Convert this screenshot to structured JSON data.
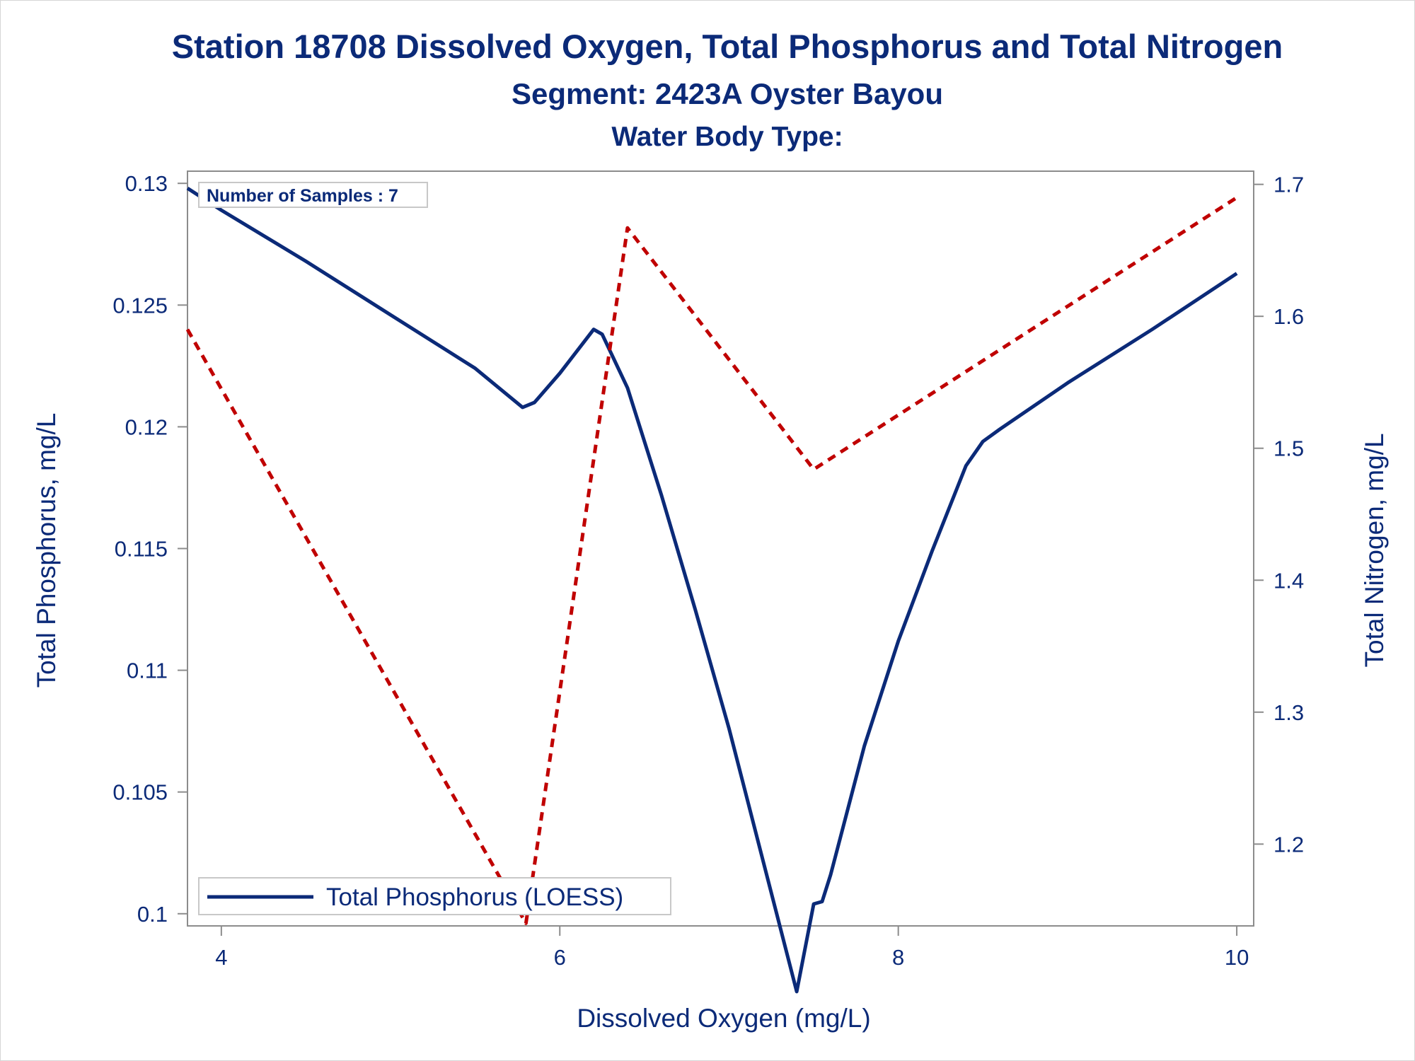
{
  "chart_data": {
    "type": "line",
    "title": "Station 18708  Dissolved Oxygen, Total Phosphorus and Total Nitrogen",
    "subtitle": "Segment: 2423A  Oyster Bayou",
    "subtitle2": "Water Body Type:",
    "xlabel": "Dissolved Oxygen (mg/L)",
    "ylabel": "Total Phosphorus, mg/L",
    "y2label": "Total Nitrogen, mg/L",
    "xlim": [
      3.8,
      10.1
    ],
    "ylim": [
      0.0995,
      0.1305
    ],
    "y2lim": [
      1.138,
      1.71
    ],
    "x_ticks": [
      "4",
      "6",
      "8",
      "10"
    ],
    "y_ticks": [
      "0.1",
      "0.105",
      "0.11",
      "0.115",
      "0.12",
      "0.125",
      "0.13"
    ],
    "y2_ticks": [
      "1.2",
      "1.3",
      "1.4",
      "1.5",
      "1.6",
      "1.7"
    ],
    "annotation": "Number of Samples : 7",
    "legend_position": "bottom-left",
    "colors": {
      "phosphorus": "#0b2a78",
      "nitrogen": "#c00000",
      "text": "#0b2a78",
      "axis": "#8c8c8c"
    },
    "series": [
      {
        "name": "Total Phosphorus (LOESS)",
        "axis": "left",
        "style": "solid",
        "x": [
          3.8,
          4.0,
          4.5,
          5.0,
          5.5,
          5.78,
          5.85,
          6.0,
          6.2,
          6.25,
          6.4,
          6.6,
          6.8,
          7.0,
          7.2,
          7.4,
          7.5,
          7.55,
          7.6,
          7.8,
          8.0,
          8.2,
          8.4,
          8.5,
          8.6,
          9.0,
          9.5,
          10.0
        ],
        "y": [
          0.1298,
          0.1289,
          0.1268,
          0.1246,
          0.1224,
          0.1208,
          0.121,
          0.1222,
          0.124,
          0.1238,
          0.1216,
          0.1172,
          0.1125,
          0.1076,
          0.1022,
          0.0968,
          0.1004,
          0.1005,
          0.1016,
          0.1069,
          0.1112,
          0.1149,
          0.1184,
          0.1194,
          0.1199,
          0.1218,
          0.124,
          0.1263
        ]
      },
      {
        "name": "Total Nitrogen",
        "axis": "right",
        "style": "dashed",
        "x": [
          3.8,
          5.8,
          6.4,
          7.5,
          10.0
        ],
        "y": [
          1.59,
          1.14,
          1.667,
          1.484,
          1.69
        ]
      }
    ]
  }
}
